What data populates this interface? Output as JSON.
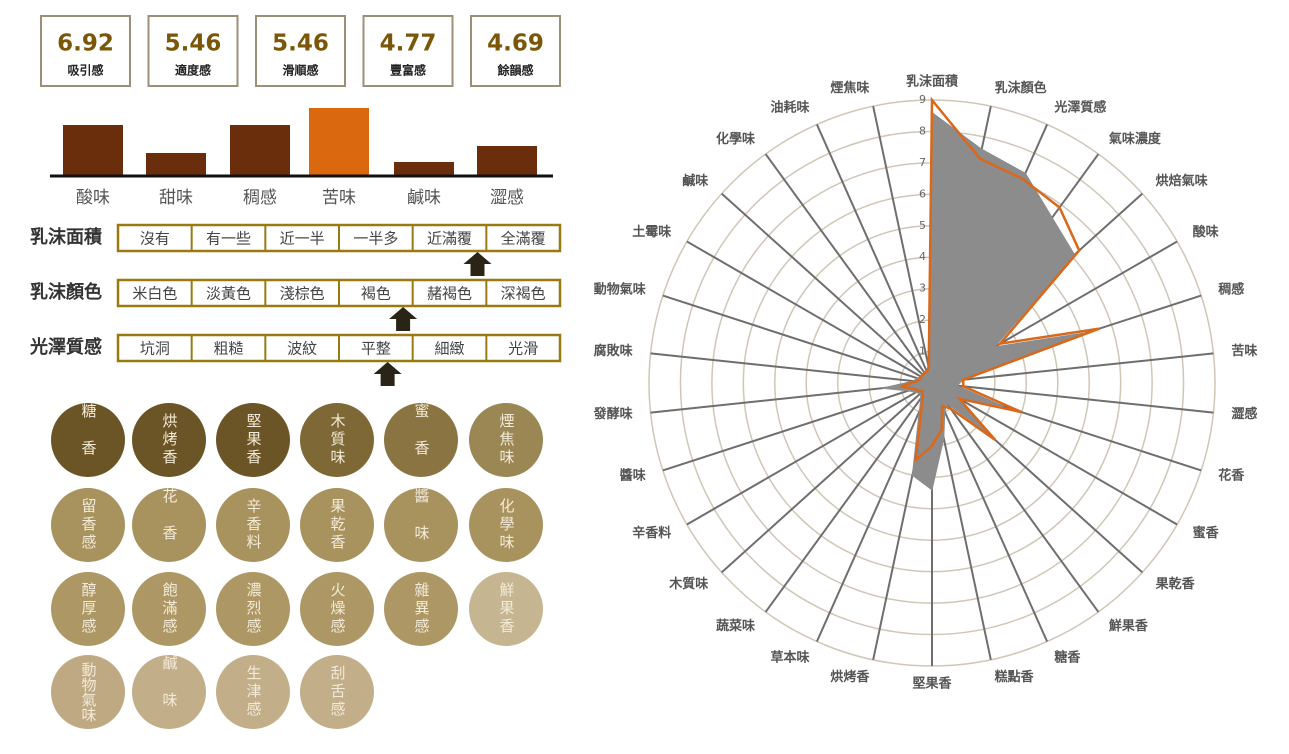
{
  "scores": [
    {
      "value": 6.92,
      "label": "吸引感"
    },
    {
      "value": 5.46,
      "label": "適度感"
    },
    {
      "value": 5.46,
      "label": "滑順感"
    },
    {
      "value": 4.77,
      "label": "豐富感"
    },
    {
      "value": 4.69,
      "label": "餘韻感"
    }
  ],
  "scales": [
    {
      "label": "乳沫面積",
      "options": [
        "沒有",
        "有一些",
        "近一半",
        "一半多",
        "近滿覆",
        "全滿覆"
      ],
      "marker": 4.38
    },
    {
      "label": "乳沫顏色",
      "options": [
        "米白色",
        "淡黃色",
        "淺棕色",
        "褐色",
        "赭褐色",
        "深褐色"
      ],
      "marker": 3.37
    },
    {
      "label": "光澤質感",
      "options": [
        "坑洞",
        "粗糙",
        "波紋",
        "平整",
        "細緻",
        "光滑"
      ],
      "marker": 3.16
    }
  ],
  "tags": [
    {
      "text": "糖香",
      "color": "#6b5526"
    },
    {
      "text": "烘烤香",
      "color": "#6b5526"
    },
    {
      "text": "堅果香",
      "color": "#6b5526"
    },
    {
      "text": "木質味",
      "color": "#7d6836"
    },
    {
      "text": "蜜香",
      "color": "#8a7542"
    },
    {
      "text": "煙焦味",
      "color": "#9a8754"
    },
    {
      "text": "留香感",
      "color": "#a8935f"
    },
    {
      "text": "花香",
      "color": "#a8935f"
    },
    {
      "text": "辛香料",
      "color": "#a8935f"
    },
    {
      "text": "果乾香",
      "color": "#a8935f"
    },
    {
      "text": "醬味",
      "color": "#a8935f"
    },
    {
      "text": "化學味",
      "color": "#a8935f"
    },
    {
      "text": "醇厚感",
      "color": "#ad9865"
    },
    {
      "text": "飽滿感",
      "color": "#ad9865"
    },
    {
      "text": "濃烈感",
      "color": "#ad9865"
    },
    {
      "text": "火燥感",
      "color": "#ad9865"
    },
    {
      "text": "雜異感",
      "color": "#ad9865"
    },
    {
      "text": "鮮果香",
      "color": "#c6b591"
    },
    {
      "text": "動物氣味",
      "color": "#bfa983"
    },
    {
      "text": "鹹味",
      "color": "#c2ae88"
    },
    {
      "text": "生津感",
      "color": "#c2ae88"
    },
    {
      "text": "刮舌感",
      "color": "#c2ae88"
    }
  ],
  "chart_data": [
    {
      "type": "bar",
      "categories": [
        "酸味",
        "甜味",
        "稠感",
        "苦味",
        "鹹味",
        "澀感"
      ],
      "values": [
        51,
        23,
        51,
        68,
        14,
        30
      ],
      "colors": [
        "#6b2e0c",
        "#6b2e0c",
        "#6b2e0c",
        "#d9680f",
        "#6b2e0c",
        "#6b2e0c"
      ]
    },
    {
      "type": "radar",
      "categories": [
        "乳沫面積",
        "乳沫顏色",
        "光澤質感",
        "氣味濃度",
        "烘焙氣味",
        "酸味",
        "稠感",
        "苦味",
        "澀感",
        "花香",
        "蜜香",
        "果乾香",
        "鮮果香",
        "糖香",
        "糕點香",
        "堅果香",
        "烘烤香",
        "草本味",
        "蔬菜味",
        "木質味",
        "辛香料",
        "醬味",
        "發酵味",
        "腐敗味",
        "動物氣味",
        "土霉味",
        "鹹味",
        "化學味",
        "油耗味",
        "煙焦味"
      ],
      "rlim": [
        0,
        9
      ],
      "rticks": [
        1,
        2,
        3,
        4,
        5,
        6,
        7,
        8,
        9
      ],
      "series": [
        {
          "color": "#8c8c8c",
          "fill": true,
          "values": [
            8.6,
            7.6,
            7.3,
            6.5,
            6.1,
            2.3,
            5.2,
            1.0,
            0.8,
            2.4,
            1.0,
            2.3,
            0.8,
            1.0,
            1.8,
            3.4,
            3.0,
            1.0,
            0.6,
            0.5,
            0.6,
            0.8,
            1.6,
            0.6,
            0.5,
            0.4,
            0.4,
            0.4,
            0.4,
            0.6
          ]
        },
        {
          "color": "#d9681a",
          "fill": false,
          "values": [
            9,
            7.3,
            7.1,
            6.9,
            6.3,
            2.5,
            5.6,
            1.0,
            1.0,
            3.0,
            1.0,
            2.7,
            1.0,
            0.8,
            1.5,
            2.0,
            2.5,
            0.8,
            0.5,
            0.4,
            0.5,
            0.6,
            1.0,
            0.5,
            0.4,
            0.4,
            0.4,
            0.4,
            0.4,
            0.5
          ]
        }
      ]
    }
  ]
}
